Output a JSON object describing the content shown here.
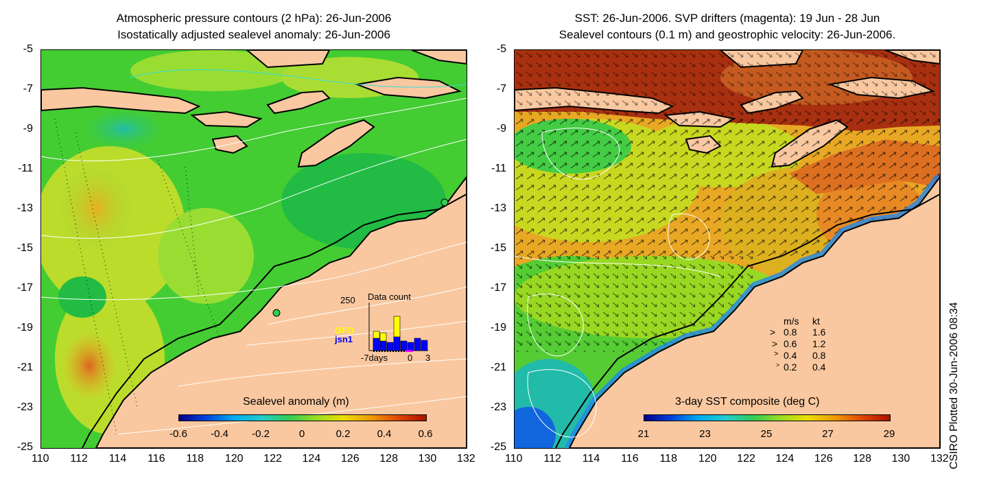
{
  "left_panel": {
    "title_line1": "Atmospheric pressure contours (2 hPa): 26-Jun-2006",
    "title_line2": "Isostatically adjusted sealevel anomaly: 26-Jun-2006",
    "colorbar_title": "Sealevel anomaly (m)",
    "colorbar_ticks": [
      "-0.6",
      "-0.4",
      "-0.2",
      "0",
      "0.2",
      "0.4",
      "0.6"
    ],
    "inset": {
      "ymax_label": "250",
      "title": "Data count",
      "series_labels": [
        "GFO",
        "jsn1"
      ],
      "series_colors": [
        "#ffff00",
        "#0000ff"
      ],
      "x_labels": [
        "-7days",
        "0",
        "3"
      ]
    }
  },
  "right_panel": {
    "title_line1": "SST: 26-Jun-2006. SVP drifters (magenta): 19 Jun - 28 Jun",
    "title_line2": "Sealevel contours (0.1 m) and geostrophic velocity: 26-Jun-2006.",
    "colorbar_title": "3-day SST composite (deg C)",
    "colorbar_ticks": [
      "21",
      "23",
      "25",
      "27",
      "29"
    ],
    "velocity_legend": {
      "header_ms": "m/s",
      "header_kt": "kt",
      "rows": [
        {
          "ms": "0.8",
          "kt": "1.6"
        },
        {
          "ms": "0.6",
          "kt": "1.2"
        },
        {
          "ms": "0.4",
          "kt": "0.8"
        },
        {
          "ms": "0.2",
          "kt": "0.4"
        }
      ]
    }
  },
  "axes": {
    "y_ticks": [
      "-5",
      "-7",
      "-9",
      "-11",
      "-13",
      "-15",
      "-17",
      "-19",
      "-21",
      "-23",
      "-25"
    ],
    "x_ticks": [
      "110",
      "112",
      "114",
      "116",
      "118",
      "120",
      "122",
      "124",
      "126",
      "128",
      "130",
      "132"
    ]
  },
  "footer_vertical": "CSIRO Plotted 30-Jun-2006 08:34",
  "colors": {
    "land": "#f9c8a0",
    "sla_green": "#33cc33",
    "sst_orange": "#f0a030",
    "sst_brown": "#a02810"
  }
}
